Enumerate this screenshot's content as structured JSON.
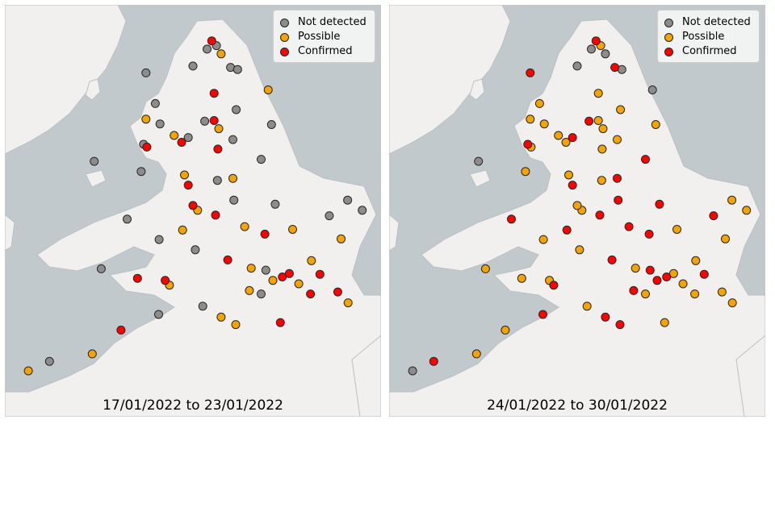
{
  "colors": {
    "sea": "#c2c9cd",
    "land": "#f1f0ee",
    "coast": "#b9c0c4",
    "point_stroke": "#262626",
    "not_detected": "#8c8c8c",
    "possible": "#f5a300",
    "confirmed": "#ff0000"
  },
  "legend": {
    "not_detected": "Not detected",
    "possible": "Possible",
    "confirmed": "Confirmed"
  },
  "panels": [
    {
      "caption": "17/01/2022 to 23/01/2022",
      "points": [
        {
          "lon": -1.6,
          "lat": 54.97,
          "status": "confirmed"
        },
        {
          "lon": -1.5,
          "lat": 54.9,
          "status": "not_detected"
        },
        {
          "lon": -1.7,
          "lat": 54.85,
          "status": "not_detected"
        },
        {
          "lon": -1.4,
          "lat": 54.78,
          "status": "possible"
        },
        {
          "lon": -1.2,
          "lat": 54.58,
          "status": "not_detected"
        },
        {
          "lon": -1.05,
          "lat": 54.55,
          "status": "not_detected"
        },
        {
          "lon": -2.0,
          "lat": 54.6,
          "status": "not_detected"
        },
        {
          "lon": -3.0,
          "lat": 54.5,
          "status": "not_detected"
        },
        {
          "lon": -1.55,
          "lat": 54.2,
          "status": "confirmed"
        },
        {
          "lon": -0.4,
          "lat": 54.25,
          "status": "possible"
        },
        {
          "lon": -1.08,
          "lat": 53.96,
          "status": "not_detected"
        },
        {
          "lon": -1.55,
          "lat": 53.8,
          "status": "confirmed"
        },
        {
          "lon": -1.75,
          "lat": 53.79,
          "status": "not_detected"
        },
        {
          "lon": -1.45,
          "lat": 53.68,
          "status": "possible"
        },
        {
          "lon": -0.33,
          "lat": 53.74,
          "status": "not_detected"
        },
        {
          "lon": -2.24,
          "lat": 53.48,
          "status": "confirmed"
        },
        {
          "lon": -2.1,
          "lat": 53.55,
          "status": "not_detected"
        },
        {
          "lon": -2.4,
          "lat": 53.58,
          "status": "possible"
        },
        {
          "lon": -2.98,
          "lat": 53.41,
          "status": "confirmed"
        },
        {
          "lon": -3.05,
          "lat": 53.45,
          "status": "not_detected"
        },
        {
          "lon": -1.47,
          "lat": 53.38,
          "status": "confirmed"
        },
        {
          "lon": -1.15,
          "lat": 53.52,
          "status": "not_detected"
        },
        {
          "lon": -0.55,
          "lat": 53.23,
          "status": "not_detected"
        },
        {
          "lon": -1.15,
          "lat": 52.95,
          "status": "possible"
        },
        {
          "lon": -1.48,
          "lat": 52.92,
          "status": "not_detected"
        },
        {
          "lon": -2.18,
          "lat": 53.0,
          "status": "possible"
        },
        {
          "lon": -1.9,
          "lat": 52.48,
          "status": "possible"
        },
        {
          "lon": -2.0,
          "lat": 52.55,
          "status": "confirmed"
        },
        {
          "lon": -1.52,
          "lat": 52.41,
          "status": "confirmed"
        },
        {
          "lon": -1.13,
          "lat": 52.63,
          "status": "not_detected"
        },
        {
          "lon": -0.25,
          "lat": 52.57,
          "status": "not_detected"
        },
        {
          "lon": 0.12,
          "lat": 52.2,
          "status": "possible"
        },
        {
          "lon": 1.29,
          "lat": 52.63,
          "status": "not_detected"
        },
        {
          "lon": 1.15,
          "lat": 52.06,
          "status": "possible"
        },
        {
          "lon": -0.9,
          "lat": 52.24,
          "status": "possible"
        },
        {
          "lon": -0.47,
          "lat": 52.13,
          "status": "confirmed"
        },
        {
          "lon": -1.26,
          "lat": 51.75,
          "status": "confirmed"
        },
        {
          "lon": -0.76,
          "lat": 51.63,
          "status": "possible"
        },
        {
          "lon": -0.1,
          "lat": 51.5,
          "status": "confirmed"
        },
        {
          "lon": 0.05,
          "lat": 51.55,
          "status": "confirmed"
        },
        {
          "lon": -0.3,
          "lat": 51.45,
          "status": "possible"
        },
        {
          "lon": 0.25,
          "lat": 51.4,
          "status": "possible"
        },
        {
          "lon": -0.45,
          "lat": 51.6,
          "status": "not_detected"
        },
        {
          "lon": 0.52,
          "lat": 51.74,
          "status": "possible"
        },
        {
          "lon": 0.7,
          "lat": 51.54,
          "status": "confirmed"
        },
        {
          "lon": 1.08,
          "lat": 51.28,
          "status": "confirmed"
        },
        {
          "lon": 1.3,
          "lat": 51.12,
          "status": "possible"
        },
        {
          "lon": 0.5,
          "lat": 51.25,
          "status": "confirmed"
        },
        {
          "lon": -0.14,
          "lat": 50.83,
          "status": "confirmed"
        },
        {
          "lon": -1.09,
          "lat": 50.8,
          "status": "possible"
        },
        {
          "lon": -1.4,
          "lat": 50.91,
          "status": "possible"
        },
        {
          "lon": -1.79,
          "lat": 51.07,
          "status": "not_detected"
        },
        {
          "lon": -2.59,
          "lat": 51.45,
          "status": "confirmed"
        },
        {
          "lon": -2.5,
          "lat": 51.38,
          "status": "possible"
        },
        {
          "lon": -3.18,
          "lat": 51.48,
          "status": "confirmed"
        },
        {
          "lon": -3.95,
          "lat": 51.62,
          "status": "not_detected"
        },
        {
          "lon": -3.53,
          "lat": 50.72,
          "status": "confirmed"
        },
        {
          "lon": -4.14,
          "lat": 50.37,
          "status": "possible"
        },
        {
          "lon": -5.05,
          "lat": 50.26,
          "status": "not_detected"
        },
        {
          "lon": -5.5,
          "lat": 50.12,
          "status": "possible"
        },
        {
          "lon": -2.73,
          "lat": 50.95,
          "status": "not_detected"
        },
        {
          "lon": -3.1,
          "lat": 53.05,
          "status": "not_detected"
        },
        {
          "lon": -4.1,
          "lat": 53.2,
          "status": "not_detected"
        },
        {
          "lon": -3.4,
          "lat": 52.35,
          "status": "not_detected"
        },
        {
          "lon": -2.72,
          "lat": 52.05,
          "status": "not_detected"
        },
        {
          "lon": -2.22,
          "lat": 52.19,
          "status": "possible"
        },
        {
          "lon": -1.95,
          "lat": 51.9,
          "status": "not_detected"
        },
        {
          "lon": -2.1,
          "lat": 52.85,
          "status": "confirmed"
        },
        {
          "lon": -0.8,
          "lat": 51.3,
          "status": "possible"
        },
        {
          "lon": -0.55,
          "lat": 51.25,
          "status": "not_detected"
        },
        {
          "lon": 1.6,
          "lat": 52.48,
          "status": "not_detected"
        },
        {
          "lon": 0.9,
          "lat": 52.4,
          "status": "not_detected"
        },
        {
          "lon": -2.7,
          "lat": 53.75,
          "status": "not_detected"
        },
        {
          "lon": -3.0,
          "lat": 53.82,
          "status": "possible"
        },
        {
          "lon": -2.8,
          "lat": 54.05,
          "status": "not_detected"
        }
      ]
    },
    {
      "caption": "24/01/2022 to 30/01/2022",
      "points": [
        {
          "lon": -1.6,
          "lat": 54.97,
          "status": "confirmed"
        },
        {
          "lon": -1.5,
          "lat": 54.9,
          "status": "possible"
        },
        {
          "lon": -1.7,
          "lat": 54.85,
          "status": "not_detected"
        },
        {
          "lon": -1.4,
          "lat": 54.78,
          "status": "not_detected"
        },
        {
          "lon": -1.2,
          "lat": 54.58,
          "status": "confirmed"
        },
        {
          "lon": -1.05,
          "lat": 54.55,
          "status": "not_detected"
        },
        {
          "lon": -2.0,
          "lat": 54.6,
          "status": "not_detected"
        },
        {
          "lon": -3.0,
          "lat": 54.5,
          "status": "confirmed"
        },
        {
          "lon": -1.55,
          "lat": 54.2,
          "status": "possible"
        },
        {
          "lon": -0.4,
          "lat": 54.25,
          "status": "not_detected"
        },
        {
          "lon": -1.08,
          "lat": 53.96,
          "status": "possible"
        },
        {
          "lon": -1.55,
          "lat": 53.8,
          "status": "possible"
        },
        {
          "lon": -1.75,
          "lat": 53.79,
          "status": "confirmed"
        },
        {
          "lon": -1.45,
          "lat": 53.68,
          "status": "possible"
        },
        {
          "lon": -0.33,
          "lat": 53.74,
          "status": "possible"
        },
        {
          "lon": -2.24,
          "lat": 53.48,
          "status": "possible"
        },
        {
          "lon": -2.1,
          "lat": 53.55,
          "status": "confirmed"
        },
        {
          "lon": -2.4,
          "lat": 53.58,
          "status": "possible"
        },
        {
          "lon": -2.98,
          "lat": 53.41,
          "status": "possible"
        },
        {
          "lon": -3.05,
          "lat": 53.45,
          "status": "confirmed"
        },
        {
          "lon": -1.47,
          "lat": 53.38,
          "status": "possible"
        },
        {
          "lon": -1.15,
          "lat": 53.52,
          "status": "possible"
        },
        {
          "lon": -0.55,
          "lat": 53.23,
          "status": "confirmed"
        },
        {
          "lon": -1.15,
          "lat": 52.95,
          "status": "confirmed"
        },
        {
          "lon": -1.48,
          "lat": 52.92,
          "status": "possible"
        },
        {
          "lon": -2.18,
          "lat": 53.0,
          "status": "possible"
        },
        {
          "lon": -1.9,
          "lat": 52.48,
          "status": "possible"
        },
        {
          "lon": -2.0,
          "lat": 52.55,
          "status": "possible"
        },
        {
          "lon": -1.52,
          "lat": 52.41,
          "status": "confirmed"
        },
        {
          "lon": -1.13,
          "lat": 52.63,
          "status": "confirmed"
        },
        {
          "lon": -0.25,
          "lat": 52.57,
          "status": "confirmed"
        },
        {
          "lon": 0.12,
          "lat": 52.2,
          "status": "possible"
        },
        {
          "lon": 1.29,
          "lat": 52.63,
          "status": "possible"
        },
        {
          "lon": 1.15,
          "lat": 52.06,
          "status": "possible"
        },
        {
          "lon": -0.9,
          "lat": 52.24,
          "status": "confirmed"
        },
        {
          "lon": -0.47,
          "lat": 52.13,
          "status": "confirmed"
        },
        {
          "lon": -1.26,
          "lat": 51.75,
          "status": "confirmed"
        },
        {
          "lon": -0.76,
          "lat": 51.63,
          "status": "possible"
        },
        {
          "lon": -0.1,
          "lat": 51.5,
          "status": "confirmed"
        },
        {
          "lon": 0.05,
          "lat": 51.55,
          "status": "possible"
        },
        {
          "lon": -0.3,
          "lat": 51.45,
          "status": "confirmed"
        },
        {
          "lon": 0.25,
          "lat": 51.4,
          "status": "possible"
        },
        {
          "lon": -0.45,
          "lat": 51.6,
          "status": "confirmed"
        },
        {
          "lon": 0.52,
          "lat": 51.74,
          "status": "possible"
        },
        {
          "lon": 0.7,
          "lat": 51.54,
          "status": "confirmed"
        },
        {
          "lon": 1.08,
          "lat": 51.28,
          "status": "possible"
        },
        {
          "lon": 1.3,
          "lat": 51.12,
          "status": "possible"
        },
        {
          "lon": 0.5,
          "lat": 51.25,
          "status": "possible"
        },
        {
          "lon": -0.14,
          "lat": 50.83,
          "status": "possible"
        },
        {
          "lon": -1.09,
          "lat": 50.8,
          "status": "confirmed"
        },
        {
          "lon": -1.4,
          "lat": 50.91,
          "status": "confirmed"
        },
        {
          "lon": -1.79,
          "lat": 51.07,
          "status": "possible"
        },
        {
          "lon": -2.59,
          "lat": 51.45,
          "status": "possible"
        },
        {
          "lon": -2.5,
          "lat": 51.38,
          "status": "confirmed"
        },
        {
          "lon": -3.18,
          "lat": 51.48,
          "status": "possible"
        },
        {
          "lon": -3.95,
          "lat": 51.62,
          "status": "possible"
        },
        {
          "lon": -3.53,
          "lat": 50.72,
          "status": "possible"
        },
        {
          "lon": -4.14,
          "lat": 50.37,
          "status": "possible"
        },
        {
          "lon": -5.05,
          "lat": 50.26,
          "status": "confirmed"
        },
        {
          "lon": -5.5,
          "lat": 50.12,
          "status": "not_detected"
        },
        {
          "lon": -2.73,
          "lat": 50.95,
          "status": "confirmed"
        },
        {
          "lon": -3.1,
          "lat": 53.05,
          "status": "possible"
        },
        {
          "lon": -4.1,
          "lat": 53.2,
          "status": "not_detected"
        },
        {
          "lon": -3.4,
          "lat": 52.35,
          "status": "confirmed"
        },
        {
          "lon": -2.72,
          "lat": 52.05,
          "status": "possible"
        },
        {
          "lon": -2.22,
          "lat": 52.19,
          "status": "confirmed"
        },
        {
          "lon": -1.95,
          "lat": 51.9,
          "status": "possible"
        },
        {
          "lon": -2.1,
          "lat": 52.85,
          "status": "confirmed"
        },
        {
          "lon": -0.8,
          "lat": 51.3,
          "status": "confirmed"
        },
        {
          "lon": -0.55,
          "lat": 51.25,
          "status": "possible"
        },
        {
          "lon": 1.6,
          "lat": 52.48,
          "status": "possible"
        },
        {
          "lon": 0.9,
          "lat": 52.4,
          "status": "confirmed"
        },
        {
          "lon": -2.7,
          "lat": 53.75,
          "status": "possible"
        },
        {
          "lon": -3.0,
          "lat": 53.82,
          "status": "possible"
        },
        {
          "lon": -2.8,
          "lat": 54.05,
          "status": "possible"
        }
      ]
    }
  ]
}
